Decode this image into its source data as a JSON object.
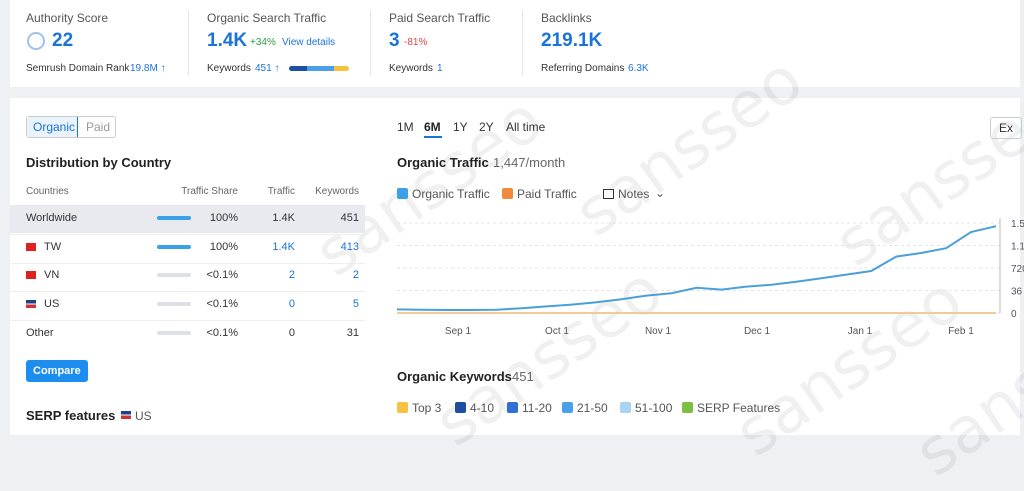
{
  "metrics": [
    {
      "title": "Authority Score",
      "value": "22",
      "sub": "Semrush Domain Rank",
      "sub_value": "19.8M ↑"
    },
    {
      "title": "Organic Search Traffic",
      "value": "1.4K",
      "change": "+34%",
      "link": "View details",
      "sub": "Keywords",
      "sub_value": "451 ↑"
    },
    {
      "title": "Paid Search Traffic",
      "value": "3",
      "change": "-81%",
      "sub": "Keywords",
      "sub_value": "1"
    },
    {
      "title": "Backlinks",
      "value": "219.1K",
      "sub": "Referring Domains",
      "sub_value": "6.3K"
    }
  ],
  "tabs": [
    "Organic",
    "Paid"
  ],
  "distribution": {
    "title": "Distribution by Country",
    "columns": [
      "Countries",
      "Traffic Share",
      "Traffic",
      "Keywords"
    ],
    "rows": [
      [
        "Worldwide",
        "100%",
        "1.4K",
        "451"
      ],
      [
        "TW",
        "100%",
        "1.4K",
        "413"
      ],
      [
        "VN",
        "<0.1%",
        "2",
        "2"
      ],
      [
        "US",
        "<0.1%",
        "0",
        "5"
      ],
      [
        "Other",
        "<0.1%",
        "0",
        "31"
      ]
    ]
  },
  "compare": "Compare",
  "serp": {
    "title": "SERP features",
    "country": "US"
  },
  "periods": [
    "1M",
    "6M",
    "1Y",
    "2Y",
    "All time"
  ],
  "export": "Ex",
  "traffic_chart": {
    "title": "Organic Traffic",
    "subtitle": "1,447/month",
    "legend": [
      "Organic Traffic",
      "Paid Traffic"
    ],
    "notes": "Notes",
    "x_labels": [
      "Sep 1",
      "Oct 1",
      "Nov 1",
      "Dec 1",
      "Jan 1",
      "Feb 1"
    ],
    "y_labels": [
      "1.5",
      "1.1",
      "720",
      "36",
      "0"
    ],
    "ylim": [
      0,
      1500
    ],
    "organic_traffic": [
      60,
      55,
      50,
      50,
      55,
      80,
      110,
      140,
      180,
      230,
      290,
      330,
      420,
      390,
      440,
      470,
      520,
      580,
      640,
      700,
      940,
      1000,
      1080,
      1350,
      1447
    ],
    "paid_traffic": [
      0,
      0,
      0,
      0,
      0,
      0,
      0,
      0,
      0,
      0,
      0,
      0,
      0,
      0,
      0,
      0,
      0,
      0,
      0,
      0,
      0,
      0,
      0,
      0,
      0
    ]
  },
  "keywords": {
    "title": "Organic Keywords",
    "count": "451",
    "legend": [
      "Top 3",
      "4-10",
      "11-20",
      "21-50",
      "51-100",
      "SERP Features"
    ],
    "colors": [
      "#f5c242",
      "#1e4fa0",
      "#2f6fd6",
      "#4aa0ea",
      "#a9d3f5",
      "#7ac043"
    ]
  },
  "watermark": "sansseo"
}
